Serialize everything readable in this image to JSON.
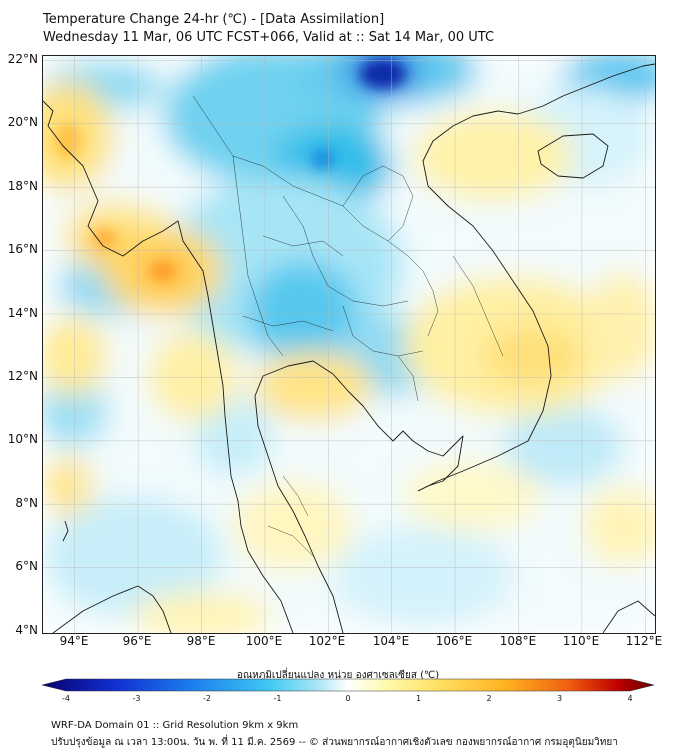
{
  "header": {
    "title_line1": "Temperature Change 24-hr (℃) - [Data Assimilation]",
    "title_line2": "Wednesday 11 Mar, 06 UTC FCST+066, Valid at :: Sat 14 Mar, 00 UTC"
  },
  "map": {
    "lat_labels": [
      "22°N",
      "20°N",
      "18°N",
      "16°N",
      "14°N",
      "12°N",
      "10°N",
      "8°N",
      "6°N",
      "4°N"
    ],
    "lon_labels": [
      "94°E",
      "96°E",
      "98°E",
      "100°E",
      "102°E",
      "104°E",
      "106°E",
      "108°E",
      "110°E",
      "112°E"
    ],
    "extent": {
      "lon_min": 93.0,
      "lon_max": 112.3,
      "lat_min": 4.0,
      "lat_max": 22.2
    },
    "gridlines": true
  },
  "colorbar": {
    "title": "อุณหภูมิเปลี่ยนแปลง หน่วย องศาเซลเซียส (℃)",
    "ticks": [
      "-4",
      "-3",
      "-2",
      "-1",
      "0",
      "1",
      "2",
      "3",
      "4"
    ],
    "min": -4,
    "max": 4,
    "colors": [
      "#08006e",
      "#1030d0",
      "#1e80f0",
      "#3ec8f2",
      "#a8e6f5",
      "#ffffff",
      "#fffab0",
      "#ffe060",
      "#ffb020",
      "#f06010",
      "#c00000",
      "#600000"
    ]
  },
  "footer": {
    "line1": "WRF-DA Domain 01 :: Grid Resolution 9km x 9km",
    "line2": "ปรับปรุงข้อมูล ณ เวลา 13:00น. วัน พ. ที่ 11 มี.ค. 2569 -- © ส่วนพยากรณ์อากาศเชิงตัวเลข กองพยากรณ์อากาศ กรมอุตุนิยมวิทยา"
  }
}
